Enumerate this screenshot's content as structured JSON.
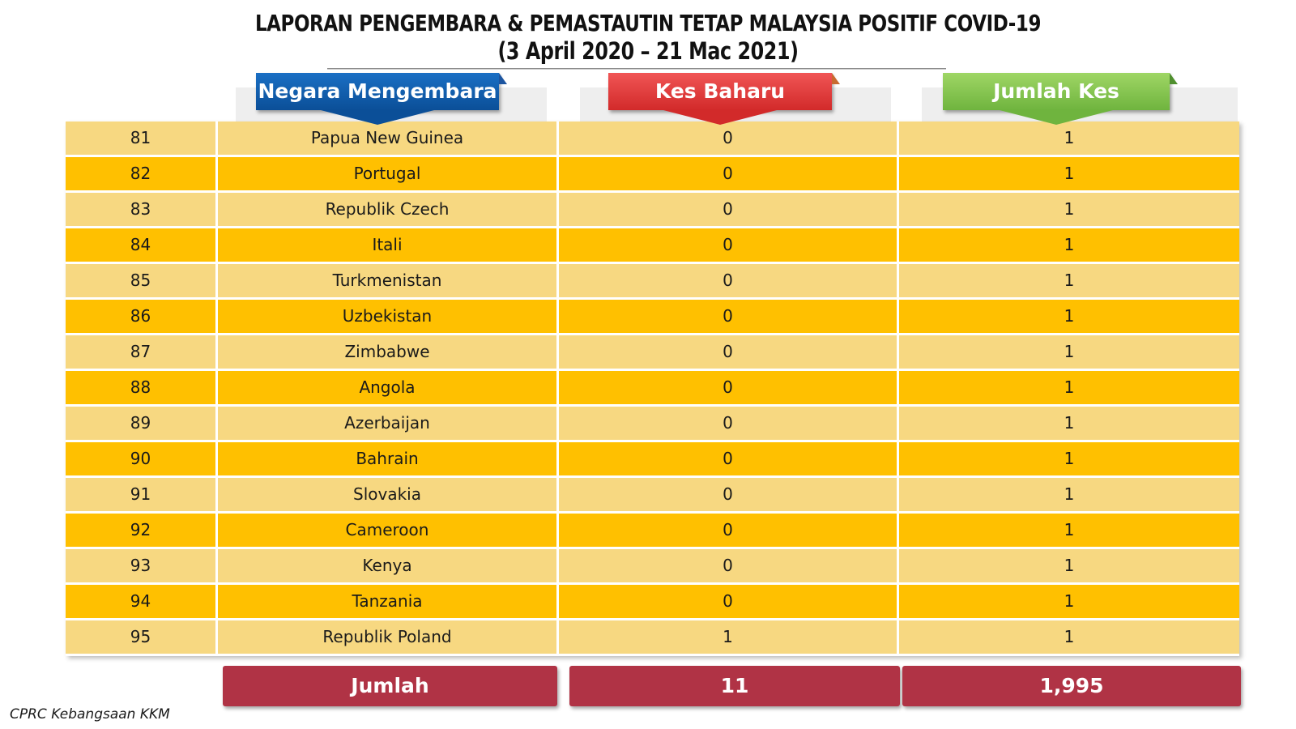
{
  "title": {
    "line1": "LAPORAN PENGEMBARA & PEMASTAUTIN TETAP MALAYSIA POSITIF COVID-19",
    "line2": "(3 April 2020 – 21 Mac 2021)"
  },
  "headers": {
    "country": "Negara Mengembara",
    "new_cases": "Kes Baharu",
    "total_cases": "Jumlah Kes"
  },
  "rows": [
    {
      "no": "81",
      "country": "Papua New Guinea",
      "new": "0",
      "total": "1"
    },
    {
      "no": "82",
      "country": "Portugal",
      "new": "0",
      "total": "1"
    },
    {
      "no": "83",
      "country": "Republik Czech",
      "new": "0",
      "total": "1"
    },
    {
      "no": "84",
      "country": "Itali",
      "new": "0",
      "total": "1"
    },
    {
      "no": "85",
      "country": "Turkmenistan",
      "new": "0",
      "total": "1"
    },
    {
      "no": "86",
      "country": "Uzbekistan",
      "new": "0",
      "total": "1"
    },
    {
      "no": "87",
      "country": "Zimbabwe",
      "new": "0",
      "total": "1"
    },
    {
      "no": "88",
      "country": "Angola",
      "new": "0",
      "total": "1"
    },
    {
      "no": "89",
      "country": "Azerbaijan",
      "new": "0",
      "total": "1"
    },
    {
      "no": "90",
      "country": "Bahrain",
      "new": "0",
      "total": "1"
    },
    {
      "no": "91",
      "country": "Slovakia",
      "new": "0",
      "total": "1"
    },
    {
      "no": "92",
      "country": "Cameroon",
      "new": "0",
      "total": "1"
    },
    {
      "no": "93",
      "country": "Kenya",
      "new": "0",
      "total": "1"
    },
    {
      "no": "94",
      "country": "Tanzania",
      "new": "0",
      "total": "1"
    },
    {
      "no": "95",
      "country": "Republik Poland",
      "new": "1",
      "total": "1"
    }
  ],
  "totals": {
    "label": "Jumlah",
    "new": "11",
    "total": "1,995"
  },
  "footer": "CPRC Kebangsaan KKM",
  "colors": {
    "row_light": "#f7d881",
    "row_dark": "#ffc000",
    "header_blue": "#0b4f98",
    "header_red": "#d22a2a",
    "header_green": "#6fb43e",
    "total_bar": "#b03345"
  }
}
